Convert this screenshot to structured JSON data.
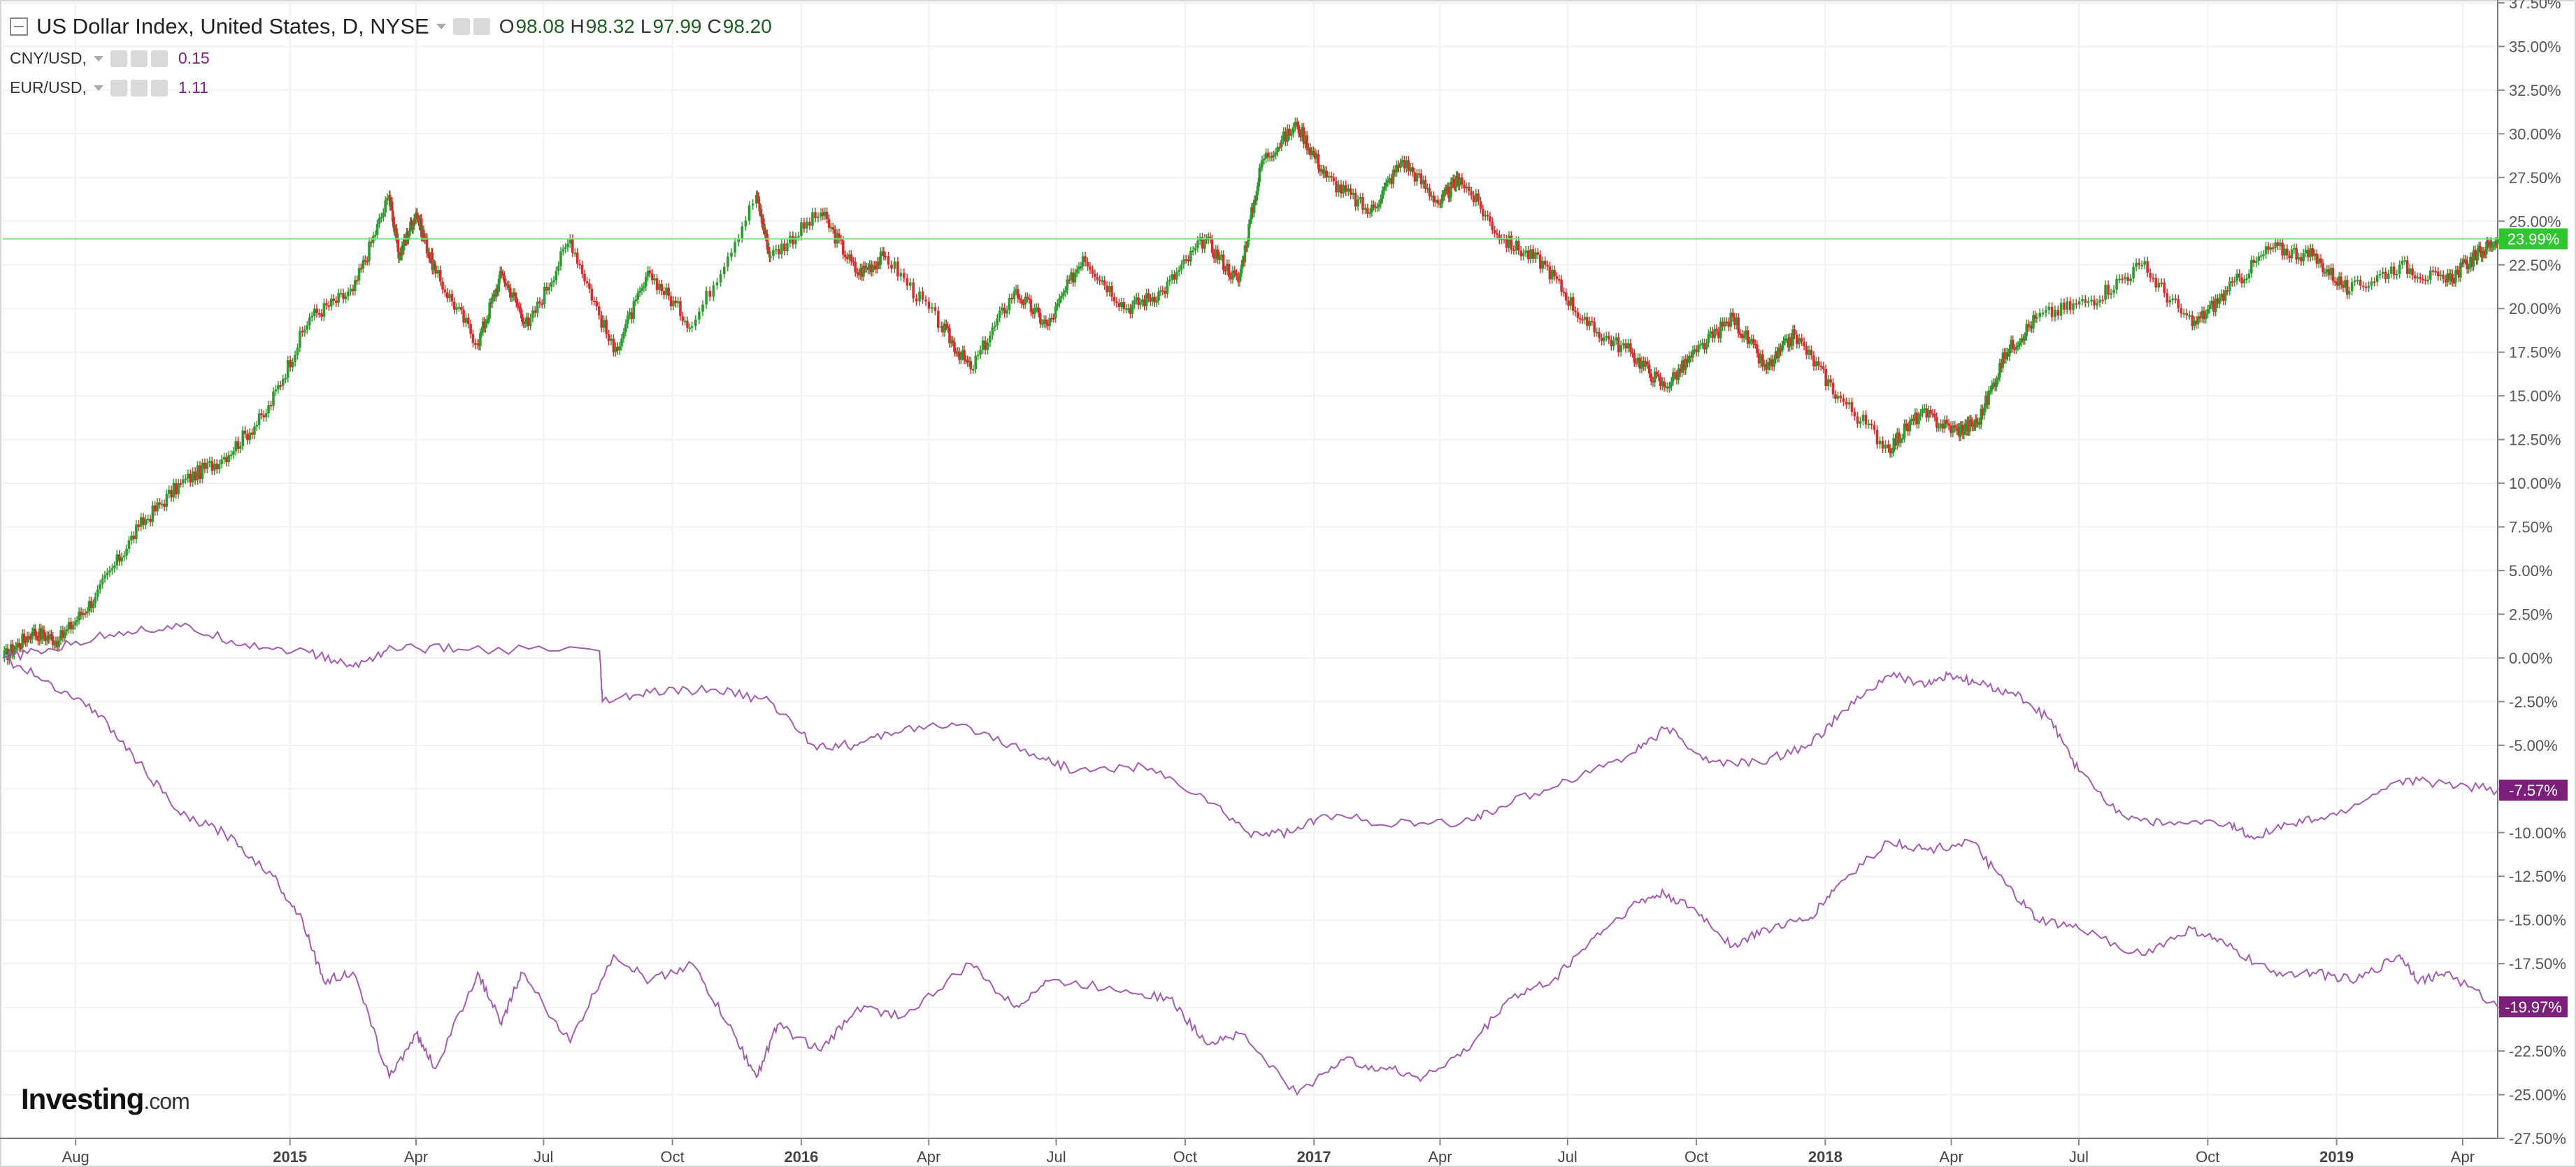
{
  "legend": {
    "main": {
      "title": "US Dollar Index, United States, D, NYSE",
      "o_label": "O",
      "o": "98.08",
      "h_label": "H",
      "h": "98.32",
      "l_label": "L",
      "l": "97.99",
      "c_label": "C",
      "c": "98.20"
    },
    "cny": {
      "label": "CNY/USD,",
      "value": "0.15"
    },
    "eur": {
      "label": "EUR/USD,",
      "value": "1.11"
    }
  },
  "logo": {
    "bold": "Investing",
    "suffix": ".com"
  },
  "colors": {
    "up": "#2e9b2e",
    "down": "#d32f2f",
    "compare": "#a35bb0",
    "last_line": "#7ee07e",
    "last_badge": "#2fc62f",
    "compare_badge": "#7b1f7b",
    "grid": "#f1f1f1",
    "axis_text": "#555555"
  },
  "chart_data": {
    "type": "line",
    "y_axis": {
      "unit": "%",
      "ylim": [
        -27.5,
        37.5
      ],
      "ticks": [
        "37.50%",
        "35.00%",
        "32.50%",
        "30.00%",
        "27.50%",
        "25.00%",
        "22.50%",
        "20.00%",
        "17.50%",
        "15.00%",
        "12.50%",
        "10.00%",
        "7.50%",
        "5.00%",
        "2.50%",
        "0.00%",
        "-2.50%",
        "-5.00%",
        "-7.50%",
        "-10.00%",
        "-12.50%",
        "-15.00%",
        "-17.50%",
        "-20.00%",
        "-22.50%",
        "-25.00%",
        "-27.50%"
      ]
    },
    "x_axis": {
      "range": [
        "2014-06-10",
        "2019-04-26"
      ],
      "ticks": [
        {
          "date": "2014-08-01",
          "label": "Aug",
          "bold": false
        },
        {
          "date": "2015-01-01",
          "label": "2015",
          "bold": true
        },
        {
          "date": "2015-04-01",
          "label": "Apr",
          "bold": false
        },
        {
          "date": "2015-07-01",
          "label": "Jul",
          "bold": false
        },
        {
          "date": "2015-10-01",
          "label": "Oct",
          "bold": false
        },
        {
          "date": "2016-01-01",
          "label": "2016",
          "bold": true
        },
        {
          "date": "2016-04-01",
          "label": "Apr",
          "bold": false
        },
        {
          "date": "2016-07-01",
          "label": "Jul",
          "bold": false
        },
        {
          "date": "2016-10-01",
          "label": "Oct",
          "bold": false
        },
        {
          "date": "2017-01-01",
          "label": "2017",
          "bold": true
        },
        {
          "date": "2017-04-01",
          "label": "Apr",
          "bold": false
        },
        {
          "date": "2017-07-01",
          "label": "Jul",
          "bold": false
        },
        {
          "date": "2017-10-01",
          "label": "Oct",
          "bold": false
        },
        {
          "date": "2018-01-01",
          "label": "2018",
          "bold": true
        },
        {
          "date": "2018-04-01",
          "label": "Apr",
          "bold": false
        },
        {
          "date": "2018-07-01",
          "label": "Jul",
          "bold": false
        },
        {
          "date": "2018-10-01",
          "label": "Oct",
          "bold": false
        },
        {
          "date": "2019-01-01",
          "label": "2019",
          "bold": true
        },
        {
          "date": "2019-04-01",
          "label": "Apr",
          "bold": false
        }
      ]
    },
    "series": [
      {
        "name": "US Dollar Index",
        "style": "candlestick",
        "last": 23.99,
        "last_label": "23.99%",
        "points": [
          [
            "2014-06-10",
            0
          ],
          [
            "2014-07-01",
            1.5
          ],
          [
            "2014-07-20",
            1.0
          ],
          [
            "2014-08-15",
            3.5
          ],
          [
            "2014-09-15",
            7.5
          ],
          [
            "2014-10-15",
            10.0
          ],
          [
            "2014-11-15",
            11.5
          ],
          [
            "2014-12-15",
            14.0
          ],
          [
            "2015-01-15",
            19.5
          ],
          [
            "2015-02-15",
            21.0
          ],
          [
            "2015-03-13",
            26.5
          ],
          [
            "2015-03-20",
            23.0
          ],
          [
            "2015-04-01",
            25.5
          ],
          [
            "2015-04-15",
            22.0
          ],
          [
            "2015-05-15",
            18.0
          ],
          [
            "2015-06-01",
            22.0
          ],
          [
            "2015-06-20",
            19.0
          ],
          [
            "2015-07-20",
            24.0
          ],
          [
            "2015-08-20",
            17.5
          ],
          [
            "2015-09-15",
            22.0
          ],
          [
            "2015-10-15",
            19.0
          ],
          [
            "2015-11-30",
            26.5
          ],
          [
            "2015-12-10",
            23.0
          ],
          [
            "2016-01-15",
            25.5
          ],
          [
            "2016-02-10",
            22.0
          ],
          [
            "2016-03-01",
            23.0
          ],
          [
            "2016-04-10",
            19.0
          ],
          [
            "2016-05-01",
            16.5
          ],
          [
            "2016-06-01",
            21.0
          ],
          [
            "2016-06-25",
            19.0
          ],
          [
            "2016-07-20",
            23.0
          ],
          [
            "2016-08-20",
            20.0
          ],
          [
            "2016-09-15",
            21.0
          ],
          [
            "2016-10-15",
            24.0
          ],
          [
            "2016-11-08",
            21.5
          ],
          [
            "2016-11-25",
            28.5
          ],
          [
            "2016-12-20",
            30.5
          ],
          [
            "2017-01-10",
            27.5
          ],
          [
            "2017-02-10",
            25.5
          ],
          [
            "2017-03-05",
            28.5
          ],
          [
            "2017-04-01",
            26.0
          ],
          [
            "2017-04-15",
            27.5
          ],
          [
            "2017-05-15",
            24.0
          ],
          [
            "2017-06-15",
            22.5
          ],
          [
            "2017-07-15",
            19.0
          ],
          [
            "2017-08-15",
            17.5
          ],
          [
            "2017-09-08",
            15.5
          ],
          [
            "2017-10-01",
            17.5
          ],
          [
            "2017-10-27",
            19.5
          ],
          [
            "2017-11-20",
            16.5
          ],
          [
            "2017-12-10",
            18.5
          ],
          [
            "2018-01-10",
            15.0
          ],
          [
            "2018-02-15",
            12.0
          ],
          [
            "2018-03-10",
            14.0
          ],
          [
            "2018-04-05",
            13.0
          ],
          [
            "2018-04-20",
            13.5
          ],
          [
            "2018-05-10",
            17.5
          ],
          [
            "2018-06-01",
            19.5
          ],
          [
            "2018-07-10",
            20.5
          ],
          [
            "2018-08-15",
            22.5
          ],
          [
            "2018-09-20",
            19.0
          ],
          [
            "2018-10-15",
            21.0
          ],
          [
            "2018-11-15",
            23.5
          ],
          [
            "2018-12-15",
            23.0
          ],
          [
            "2019-01-10",
            21.0
          ],
          [
            "2019-02-15",
            22.5
          ],
          [
            "2019-03-20",
            21.5
          ],
          [
            "2019-04-10",
            23.0
          ],
          [
            "2019-04-26",
            23.99
          ]
        ]
      },
      {
        "name": "CNY/USD",
        "style": "line",
        "last": -7.57,
        "last_label": "-7.57%",
        "points": [
          [
            "2014-06-10",
            0
          ],
          [
            "2014-07-15",
            0.5
          ],
          [
            "2014-09-01",
            1.5
          ],
          [
            "2014-10-15",
            1.8
          ],
          [
            "2014-11-30",
            0.8
          ],
          [
            "2015-01-15",
            0.3
          ],
          [
            "2015-02-15",
            -0.5
          ],
          [
            "2015-03-15",
            0.6
          ],
          [
            "2015-05-01",
            0.5
          ],
          [
            "2015-08-10",
            0.4
          ],
          [
            "2015-08-12",
            -2.5
          ],
          [
            "2015-09-15",
            -2.0
          ],
          [
            "2015-11-01",
            -1.8
          ],
          [
            "2015-12-10",
            -2.5
          ],
          [
            "2016-01-10",
            -5.0
          ],
          [
            "2016-02-10",
            -5.0
          ],
          [
            "2016-03-15",
            -4.0
          ],
          [
            "2016-05-01",
            -4.0
          ],
          [
            "2016-06-15",
            -5.5
          ],
          [
            "2016-07-15",
            -6.5
          ],
          [
            "2016-09-01",
            -6.2
          ],
          [
            "2016-10-15",
            -8.0
          ],
          [
            "2016-11-15",
            -10.0
          ],
          [
            "2016-12-15",
            -10.0
          ],
          [
            "2017-01-10",
            -9.0
          ],
          [
            "2017-03-01",
            -9.5
          ],
          [
            "2017-04-15",
            -9.5
          ],
          [
            "2017-05-15",
            -8.5
          ],
          [
            "2017-07-01",
            -7.0
          ],
          [
            "2017-08-15",
            -5.5
          ],
          [
            "2017-09-10",
            -4.0
          ],
          [
            "2017-10-10",
            -6.0
          ],
          [
            "2017-11-15",
            -6.0
          ],
          [
            "2017-12-20",
            -5.0
          ],
          [
            "2018-01-15",
            -3.0
          ],
          [
            "2018-02-15",
            -1.0
          ],
          [
            "2018-03-15",
            -1.5
          ],
          [
            "2018-04-01",
            -1.0
          ],
          [
            "2018-04-20",
            -1.5
          ],
          [
            "2018-05-15",
            -2.0
          ],
          [
            "2018-06-10",
            -3.5
          ],
          [
            "2018-07-01",
            -6.5
          ],
          [
            "2018-08-01",
            -9.0
          ],
          [
            "2018-09-01",
            -9.5
          ],
          [
            "2018-10-15",
            -9.5
          ],
          [
            "2018-11-01",
            -10.2
          ],
          [
            "2018-12-01",
            -9.5
          ],
          [
            "2019-01-01",
            -9.0
          ],
          [
            "2019-02-15",
            -7.0
          ],
          [
            "2019-03-20",
            -7.2
          ],
          [
            "2019-04-26",
            -7.57
          ]
        ]
      },
      {
        "name": "EUR/USD",
        "style": "line",
        "last": -19.97,
        "last_label": "-19.97%",
        "points": [
          [
            "2014-06-10",
            0
          ],
          [
            "2014-07-15",
            -1.5
          ],
          [
            "2014-08-15",
            -3.0
          ],
          [
            "2014-09-15",
            -6.0
          ],
          [
            "2014-10-15",
            -9.0
          ],
          [
            "2014-11-15",
            -10.0
          ],
          [
            "2014-12-20",
            -12.5
          ],
          [
            "2015-01-10",
            -15.0
          ],
          [
            "2015-01-25",
            -18.5
          ],
          [
            "2015-02-15",
            -18.0
          ],
          [
            "2015-03-13",
            -24.0
          ],
          [
            "2015-04-01",
            -21.5
          ],
          [
            "2015-04-15",
            -23.5
          ],
          [
            "2015-05-15",
            -18.0
          ],
          [
            "2015-06-01",
            -21.0
          ],
          [
            "2015-06-15",
            -18.0
          ],
          [
            "2015-07-20",
            -22.0
          ],
          [
            "2015-08-20",
            -17.0
          ],
          [
            "2015-09-15",
            -18.5
          ],
          [
            "2015-10-15",
            -17.5
          ],
          [
            "2015-11-10",
            -21.0
          ],
          [
            "2015-11-30",
            -24.0
          ],
          [
            "2015-12-15",
            -21.0
          ],
          [
            "2016-01-15",
            -22.5
          ],
          [
            "2016-02-10",
            -20.0
          ],
          [
            "2016-03-15",
            -20.5
          ],
          [
            "2016-05-01",
            -17.5
          ],
          [
            "2016-06-01",
            -20.0
          ],
          [
            "2016-06-25",
            -18.5
          ],
          [
            "2016-08-20",
            -19.0
          ],
          [
            "2016-09-20",
            -19.5
          ],
          [
            "2016-10-15",
            -22.0
          ],
          [
            "2016-11-10",
            -21.5
          ],
          [
            "2016-12-20",
            -25.0
          ],
          [
            "2017-01-20",
            -23.0
          ],
          [
            "2017-02-20",
            -23.5
          ],
          [
            "2017-03-20",
            -24.0
          ],
          [
            "2017-04-20",
            -22.5
          ],
          [
            "2017-05-20",
            -19.5
          ],
          [
            "2017-06-20",
            -18.5
          ],
          [
            "2017-07-20",
            -16.0
          ],
          [
            "2017-08-20",
            -14.0
          ],
          [
            "2017-09-08",
            -13.5
          ],
          [
            "2017-10-01",
            -14.5
          ],
          [
            "2017-10-27",
            -16.5
          ],
          [
            "2017-11-20",
            -15.5
          ],
          [
            "2017-12-20",
            -15.0
          ],
          [
            "2018-01-10",
            -13.0
          ],
          [
            "2018-02-15",
            -10.5
          ],
          [
            "2018-03-15",
            -11.0
          ],
          [
            "2018-04-15",
            -10.5
          ],
          [
            "2018-05-10",
            -13.0
          ],
          [
            "2018-06-01",
            -15.0
          ],
          [
            "2018-07-01",
            -15.5
          ],
          [
            "2018-08-15",
            -17.0
          ],
          [
            "2018-09-20",
            -15.5
          ],
          [
            "2018-10-15",
            -16.5
          ],
          [
            "2018-11-15",
            -18.0
          ],
          [
            "2018-12-15",
            -18.0
          ],
          [
            "2019-01-15",
            -18.5
          ],
          [
            "2019-02-15",
            -17.0
          ],
          [
            "2019-03-01",
            -18.5
          ],
          [
            "2019-03-20",
            -18.0
          ],
          [
            "2019-04-26",
            -19.97
          ]
        ]
      }
    ],
    "reference_line": {
      "value": 23.99
    },
    "grid": true
  }
}
